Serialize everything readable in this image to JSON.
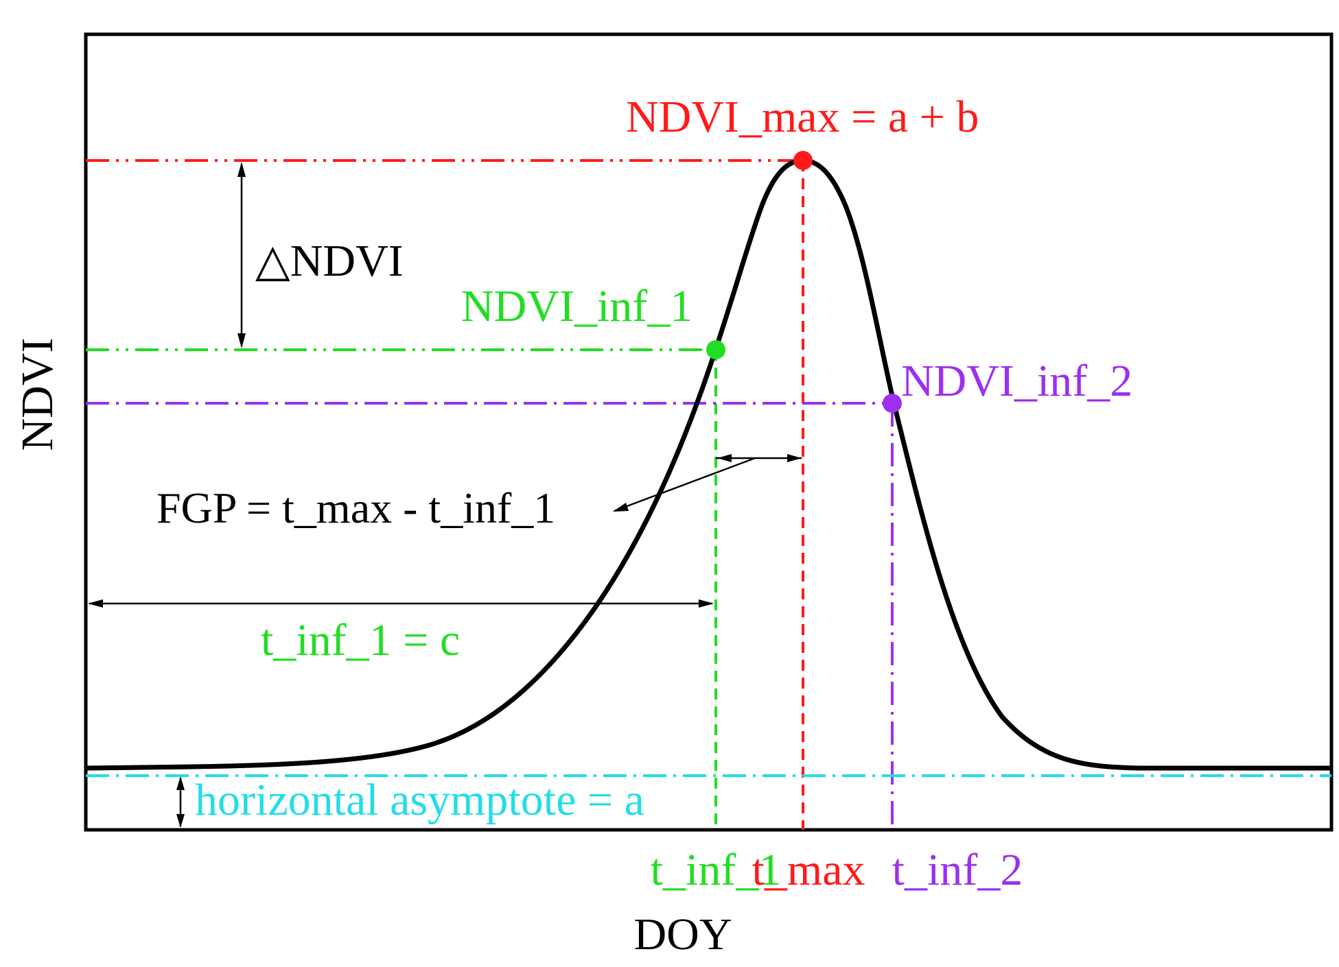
{
  "colors": {
    "curve": "#000000",
    "max": "#ff1a1a",
    "inf1": "#22dd22",
    "inf2": "#9b30ee",
    "asymptote": "#22dde8",
    "annotation": "#000000"
  },
  "axes": {
    "ylabel": "NDVI",
    "xlabel": "DOY"
  },
  "labels": {
    "ndvi_max": "NDVI_max = a + b",
    "ndvi_inf_1": "NDVI_inf_1",
    "ndvi_inf_2": "NDVI_inf_2",
    "delta_ndvi": "△NDVI",
    "fgp": "FGP = t_max - t_inf_1",
    "t_inf_1_eq": "t_inf_1 = c",
    "asymptote": "horizontal asymptote = a",
    "tick_t_inf_1": "t_inf_1",
    "tick_t_max": "t_max",
    "tick_t_inf_2": "t_inf_2"
  },
  "markers": [
    {
      "id": "max",
      "label": "NDVI_max",
      "color_key": "max"
    },
    {
      "id": "inf1",
      "label": "NDVI_inf_1",
      "color_key": "inf1"
    },
    {
      "id": "inf2",
      "label": "NDVI_inf_2",
      "color_key": "inf2"
    }
  ]
}
